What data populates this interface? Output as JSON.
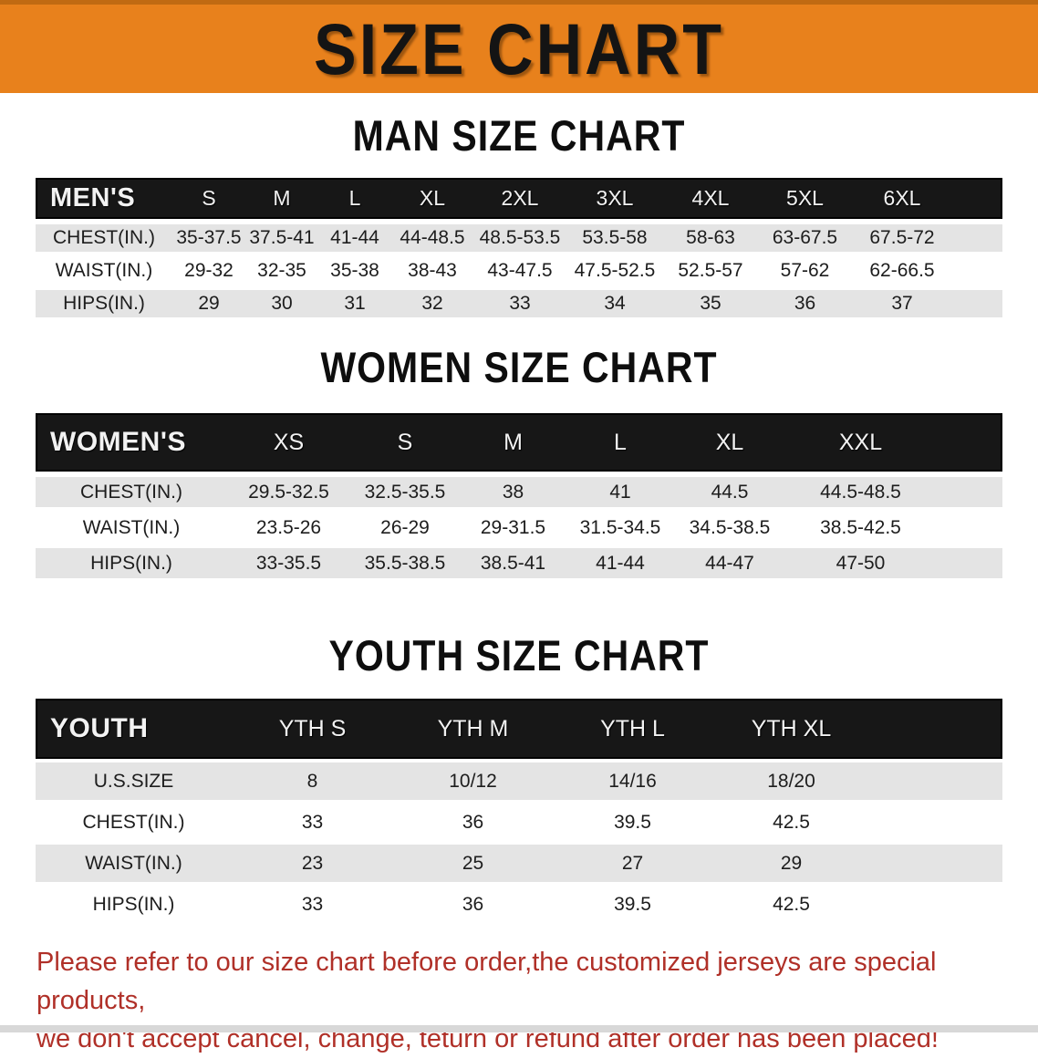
{
  "banner": {
    "title": "SIZE CHART",
    "bg_color": "#E8811C"
  },
  "sections": [
    {
      "title": "MAN SIZE CHART",
      "header_label": "MEN'S",
      "columns": [
        "S",
        "M",
        "L",
        "XL",
        "2XL",
        "3XL",
        "4XL",
        "5XL",
        "6XL"
      ],
      "rows": [
        {
          "label": "CHEST(IN.)",
          "values": [
            "35-37.5",
            "37.5-41",
            "41-44",
            "44-48.5",
            "48.5-53.5",
            "53.5-58",
            "58-63",
            "63-67.5",
            "67.5-72"
          ]
        },
        {
          "label": "WAIST(IN.)",
          "values": [
            "29-32",
            "32-35",
            "35-38",
            "38-43",
            "43-47.5",
            "47.5-52.5",
            "52.5-57",
            "57-62",
            "62-66.5"
          ]
        },
        {
          "label": "HIPS(IN.)",
          "values": [
            "29",
            "30",
            "31",
            "32",
            "33",
            "34",
            "35",
            "36",
            "37"
          ]
        }
      ]
    },
    {
      "title": "WOMEN SIZE CHART",
      "header_label": "WOMEN'S",
      "columns": [
        "XS",
        "S",
        "M",
        "L",
        "XL",
        "XXL"
      ],
      "rows": [
        {
          "label": "CHEST(IN.)",
          "values": [
            "29.5-32.5",
            "32.5-35.5",
            "38",
            "41",
            "44.5",
            "44.5-48.5"
          ]
        },
        {
          "label": "WAIST(IN.)",
          "values": [
            "23.5-26",
            "26-29",
            "29-31.5",
            "31.5-34.5",
            "34.5-38.5",
            "38.5-42.5"
          ]
        },
        {
          "label": "HIPS(IN.)",
          "values": [
            "33-35.5",
            "35.5-38.5",
            "38.5-41",
            "41-44",
            "44-47",
            "47-50"
          ]
        }
      ]
    },
    {
      "title": "YOUTH SIZE CHART",
      "header_label": "YOUTH",
      "columns": [
        "YTH S",
        "YTH M",
        "YTH L",
        "YTH XL"
      ],
      "rows": [
        {
          "label": "U.S.SIZE",
          "values": [
            "8",
            "10/12",
            "14/16",
            "18/20"
          ]
        },
        {
          "label": "CHEST(IN.)",
          "values": [
            "33",
            "36",
            "39.5",
            "42.5"
          ]
        },
        {
          "label": "WAIST(IN.)",
          "values": [
            "23",
            "25",
            "27",
            "29"
          ]
        },
        {
          "label": "HIPS(IN.)",
          "values": [
            "33",
            "36",
            "39.5",
            "42.5"
          ]
        }
      ]
    }
  ],
  "disclaimer": {
    "lines": [
      "Please refer to our size chart before order,the customized jerseys are special products,",
      "we don't accept cancel, change, teturn or refund after order has been placed!"
    ],
    "color": "#B03028"
  },
  "colors": {
    "banner_orange": "#E8811C",
    "header_bar_black": "#171717",
    "row_gray": "#E4E4E4",
    "disclaimer_red": "#B03028"
  }
}
